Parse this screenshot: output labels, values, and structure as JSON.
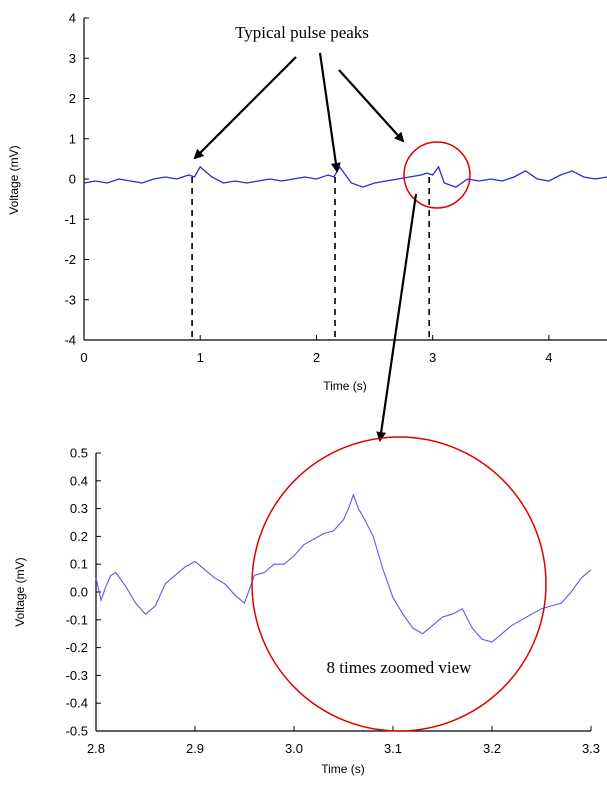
{
  "chart_data": [
    {
      "type": "line",
      "xlabel": "Time (s)",
      "ylabel": "Voltage (mV)",
      "xlim": [
        0,
        4.5
      ],
      "ylim": [
        -4,
        4
      ],
      "x_ticks": [
        0,
        1,
        2,
        3,
        4
      ],
      "y_ticks": [
        -4,
        -3,
        -2,
        -1,
        0,
        1,
        2,
        3,
        4
      ],
      "grid": false,
      "series": [
        {
          "color": "#2a2ad4",
          "x": [
            0.0,
            0.1,
            0.2,
            0.3,
            0.4,
            0.5,
            0.6,
            0.7,
            0.8,
            0.9,
            0.95,
            1.0,
            1.1,
            1.2,
            1.3,
            1.4,
            1.5,
            1.6,
            1.7,
            1.8,
            1.9,
            2.0,
            2.1,
            2.15,
            2.2,
            2.3,
            2.4,
            2.5,
            2.6,
            2.7,
            2.8,
            2.9,
            2.95,
            3.0,
            3.05,
            3.1,
            3.2,
            3.3,
            3.4,
            3.5,
            3.6,
            3.7,
            3.8,
            3.9,
            4.0,
            4.1,
            4.2,
            4.3,
            4.4,
            4.5
          ],
          "y": [
            -0.1,
            -0.05,
            -0.1,
            0.0,
            -0.05,
            -0.1,
            0.0,
            0.05,
            0.0,
            0.1,
            0.05,
            0.3,
            0.05,
            -0.1,
            -0.05,
            -0.1,
            -0.05,
            0.0,
            -0.05,
            0.0,
            0.05,
            0.0,
            0.1,
            0.05,
            0.3,
            -0.1,
            -0.2,
            -0.1,
            -0.05,
            0.0,
            0.05,
            0.1,
            0.15,
            0.1,
            0.3,
            -0.1,
            -0.2,
            0.0,
            -0.05,
            0.0,
            -0.05,
            0.05,
            0.2,
            0.0,
            -0.05,
            0.1,
            0.2,
            0.05,
            0.0,
            0.05
          ]
        }
      ],
      "annotations": [
        {
          "text": "Typical pulse peaks"
        }
      ],
      "marker_lines_x": [
        0.93,
        2.16,
        2.97
      ]
    },
    {
      "type": "line",
      "xlabel": "Time (s)",
      "ylabel": "Voltage (mV)",
      "xlim": [
        2.8,
        3.3
      ],
      "ylim": [
        -0.5,
        0.5
      ],
      "x_ticks": [
        2.8,
        2.9,
        3.0,
        3.1,
        3.2,
        3.3
      ],
      "x_tick_labels": [
        "2.8",
        "2.9",
        "3.0",
        "3.1",
        "3.2",
        "3.3"
      ],
      "y_ticks": [
        -0.5,
        -0.4,
        -0.3,
        -0.2,
        -0.1,
        0.0,
        0.1,
        0.2,
        0.3,
        0.4,
        0.5
      ],
      "y_tick_labels": [
        "-0.5",
        "-0.4",
        "-0.3",
        "-0.2",
        "-0.1",
        "0.0",
        "0.1",
        "0.2",
        "0.3",
        "0.4",
        "0.5"
      ],
      "grid": false,
      "series": [
        {
          "color": "#5a5af0",
          "x": [
            2.8,
            2.805,
            2.81,
            2.815,
            2.82,
            2.83,
            2.84,
            2.85,
            2.86,
            2.87,
            2.88,
            2.89,
            2.9,
            2.91,
            2.92,
            2.93,
            2.94,
            2.95,
            2.96,
            2.97,
            2.98,
            2.99,
            3.0,
            3.01,
            3.02,
            3.03,
            3.04,
            3.05,
            3.055,
            3.06,
            3.065,
            3.07,
            3.08,
            3.09,
            3.1,
            3.11,
            3.12,
            3.13,
            3.14,
            3.15,
            3.16,
            3.17,
            3.18,
            3.19,
            3.2,
            3.21,
            3.22,
            3.23,
            3.24,
            3.25,
            3.26,
            3.27,
            3.28,
            3.29,
            3.3
          ],
          "y": [
            0.05,
            -0.03,
            0.02,
            0.06,
            0.07,
            0.02,
            -0.04,
            -0.08,
            -0.05,
            0.03,
            0.06,
            0.09,
            0.11,
            0.08,
            0.05,
            0.03,
            -0.01,
            -0.04,
            0.06,
            0.07,
            0.1,
            0.1,
            0.13,
            0.17,
            0.19,
            0.21,
            0.22,
            0.26,
            0.3,
            0.35,
            0.3,
            0.27,
            0.2,
            0.08,
            -0.02,
            -0.08,
            -0.13,
            -0.15,
            -0.12,
            -0.09,
            -0.08,
            -0.06,
            -0.13,
            -0.17,
            -0.18,
            -0.15,
            -0.12,
            -0.1,
            -0.08,
            -0.06,
            -0.05,
            -0.04,
            0.0,
            0.05,
            0.08
          ]
        }
      ],
      "annotations": [
        {
          "text": "8 times zoomed view"
        }
      ]
    }
  ]
}
